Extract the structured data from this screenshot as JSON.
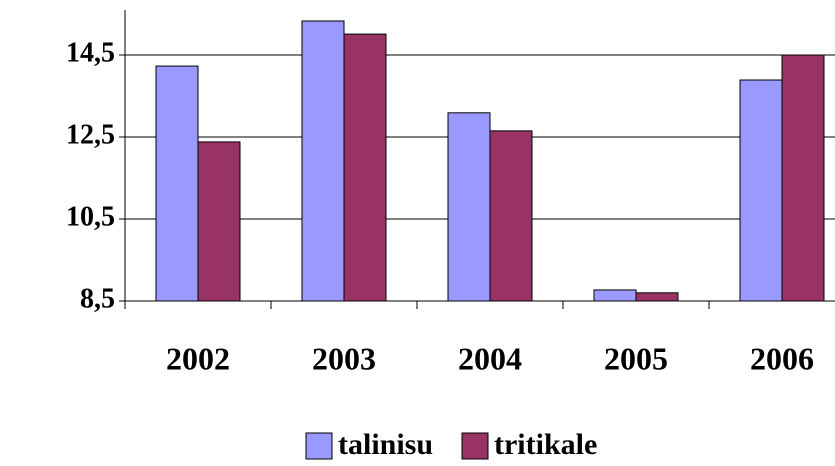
{
  "chart_data": {
    "type": "bar",
    "categories": [
      "2002",
      "2003",
      "2004",
      "2005",
      "2006"
    ],
    "series": [
      {
        "name": "talinisu",
        "color": "#9999ff",
        "values": [
          14.23,
          15.33,
          13.09,
          8.77,
          13.89
        ]
      },
      {
        "name": "tritikale",
        "color": "#993366",
        "values": [
          12.38,
          15.01,
          12.65,
          8.7,
          14.5
        ]
      }
    ],
    "ylim": [
      8.5,
      15.5
    ],
    "yticks": [
      {
        "value": 8.5,
        "label": "8,5"
      },
      {
        "value": 10.5,
        "label": "10,5"
      },
      {
        "value": 12.5,
        "label": "12,5"
      },
      {
        "value": 14.5,
        "label": "14,5"
      }
    ],
    "grid": true,
    "legend": "bottom"
  }
}
